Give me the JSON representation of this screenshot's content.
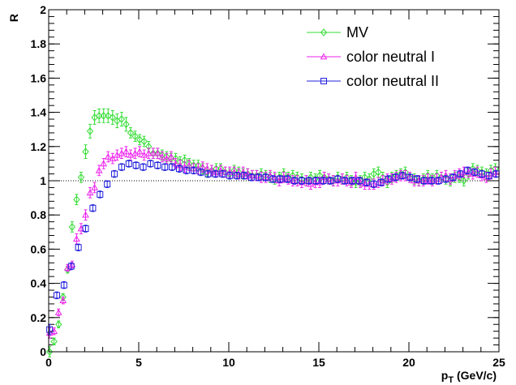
{
  "chart_data": {
    "type": "scatter",
    "title": "",
    "xlabel_main": "p",
    "xlabel_sub": "T",
    "xlabel_unit": " (GeV/c)",
    "ylabel": "R",
    "xlim": [
      0,
      25
    ],
    "ylim": [
      0,
      2
    ],
    "x_ticks": [
      0,
      5,
      10,
      15,
      20,
      25
    ],
    "y_ticks": [
      0,
      0.2,
      0.4,
      0.6,
      0.8,
      1,
      1.2,
      1.4,
      1.6,
      1.8,
      2
    ],
    "y_tick_labels": [
      "0",
      "0.2",
      "0.4",
      "0.6",
      "0.8",
      "1",
      "1.2",
      "1.4",
      "1.6",
      "1.8",
      "2"
    ],
    "reference_line_y": 1,
    "grid": false,
    "legend_position": "top-right",
    "series": [
      {
        "name": "MV",
        "marker": "diamond",
        "color": "#33dd33",
        "x": [
          0.05,
          0.3,
          0.55,
          0.8,
          1.05,
          1.3,
          1.55,
          1.8,
          2.05,
          2.3,
          2.55,
          2.8,
          3.05,
          3.3,
          3.55,
          3.8,
          4.05,
          4.3,
          4.55,
          4.8,
          5.05,
          5.3,
          5.55,
          5.8,
          6.05,
          6.3,
          6.55,
          6.8,
          7.05,
          7.3,
          7.55,
          7.8,
          8.05,
          8.3,
          8.55,
          8.8,
          9.05,
          9.3,
          9.55,
          9.8,
          10.05,
          10.3,
          10.55,
          10.8,
          11.05,
          11.3,
          11.55,
          11.8,
          12.05,
          12.3,
          12.55,
          12.8,
          13.05,
          13.3,
          13.55,
          13.8,
          14.05,
          14.3,
          14.55,
          14.8,
          15.05,
          15.3,
          15.55,
          15.8,
          16.05,
          16.3,
          16.55,
          16.8,
          17.05,
          17.3,
          17.55,
          17.8,
          18.05,
          18.3,
          18.55,
          18.8,
          19.05,
          19.3,
          19.55,
          19.8,
          20.05,
          20.3,
          20.55,
          20.8,
          21.05,
          21.3,
          21.55,
          21.8,
          22.05,
          22.3,
          22.55,
          22.8,
          23.05,
          23.3,
          23.55,
          23.8,
          24.05,
          24.3,
          24.55,
          24.8
        ],
        "y": [
          0.0,
          0.06,
          0.16,
          0.32,
          0.48,
          0.73,
          0.89,
          1.02,
          1.17,
          1.29,
          1.37,
          1.38,
          1.38,
          1.38,
          1.37,
          1.35,
          1.36,
          1.33,
          1.28,
          1.26,
          1.24,
          1.23,
          1.2,
          1.16,
          1.16,
          1.15,
          1.14,
          1.13,
          1.13,
          1.11,
          1.12,
          1.1,
          1.09,
          1.09,
          1.07,
          1.05,
          1.06,
          1.07,
          1.07,
          1.05,
          1.04,
          1.06,
          1.05,
          1.04,
          1.04,
          1.03,
          1.03,
          1.04,
          1.03,
          1.02,
          1.01,
          1.02,
          1.04,
          1.02,
          1.03,
          1.02,
          1.01,
          1.0,
          1.02,
          1.01,
          1.03,
          1.02,
          1.01,
          1.0,
          1.02,
          1.01,
          1.02,
          1.0,
          0.99,
          1.0,
          1.02,
          1.01,
          1.04,
          1.05,
          1.02,
          0.99,
          1.02,
          1.03,
          1.04,
          1.05,
          1.02,
          1.01,
          1.0,
          1.01,
          1.03,
          1.01,
          1.03,
          1.02,
          1.01,
          1.0,
          1.02,
          1.02,
          1.0,
          1.04,
          1.07,
          1.06,
          1.05,
          1.04,
          1.06,
          1.07
        ],
        "err": [
          0.03,
          0.02,
          0.02,
          0.02,
          0.02,
          0.03,
          0.03,
          0.03,
          0.04,
          0.04,
          0.04,
          0.04,
          0.04,
          0.04,
          0.04,
          0.04,
          0.04,
          0.04,
          0.03,
          0.03,
          0.03,
          0.03,
          0.03,
          0.03,
          0.03,
          0.03,
          0.03,
          0.03,
          0.03,
          0.03,
          0.03,
          0.03,
          0.03,
          0.03,
          0.03,
          0.03,
          0.03,
          0.03,
          0.03,
          0.03,
          0.03,
          0.03,
          0.03,
          0.03,
          0.03,
          0.03,
          0.03,
          0.03,
          0.03,
          0.03,
          0.03,
          0.03,
          0.03,
          0.03,
          0.03,
          0.03,
          0.03,
          0.03,
          0.03,
          0.03,
          0.03,
          0.03,
          0.03,
          0.03,
          0.03,
          0.03,
          0.03,
          0.03,
          0.03,
          0.03,
          0.03,
          0.03,
          0.03,
          0.03,
          0.03,
          0.03,
          0.03,
          0.03,
          0.03,
          0.03,
          0.03,
          0.03,
          0.03,
          0.03,
          0.03,
          0.03,
          0.03,
          0.03,
          0.03,
          0.03,
          0.03,
          0.03,
          0.03,
          0.03,
          0.03,
          0.03,
          0.03,
          0.03,
          0.03,
          0.03
        ]
      },
      {
        "name": "color neutral I",
        "marker": "triangle",
        "color": "#ee22ee",
        "x": [
          0.05,
          0.3,
          0.55,
          0.8,
          1.05,
          1.3,
          1.55,
          1.8,
          2.05,
          2.3,
          2.55,
          2.8,
          3.05,
          3.3,
          3.55,
          3.8,
          4.05,
          4.3,
          4.55,
          4.8,
          5.05,
          5.3,
          5.55,
          5.8,
          6.05,
          6.3,
          6.55,
          6.8,
          7.05,
          7.3,
          7.55,
          7.8,
          8.05,
          8.3,
          8.55,
          8.8,
          9.05,
          9.3,
          9.55,
          9.8,
          10.05,
          10.3,
          10.55,
          10.8,
          11.05,
          11.3,
          11.55,
          11.8,
          12.05,
          12.3,
          12.55,
          12.8,
          13.05,
          13.3,
          13.55,
          13.8,
          14.05,
          14.3,
          14.55,
          14.8,
          15.05,
          15.3,
          15.55,
          15.8,
          16.05,
          16.3,
          16.55,
          16.8,
          17.05,
          17.3,
          17.55,
          17.8,
          18.05,
          18.3,
          18.55,
          18.8,
          19.05,
          19.3,
          19.55,
          19.8,
          20.05,
          20.3,
          20.55,
          20.8,
          21.05,
          21.3,
          21.55,
          21.8,
          22.05,
          22.3,
          22.55,
          22.8,
          23.05,
          23.3,
          23.55,
          23.8,
          24.05,
          24.3,
          24.55,
          24.8
        ],
        "y": [
          0.11,
          0.12,
          0.23,
          0.3,
          0.49,
          0.51,
          0.66,
          0.72,
          0.8,
          0.93,
          0.96,
          1.06,
          1.1,
          1.14,
          1.13,
          1.15,
          1.16,
          1.17,
          1.15,
          1.16,
          1.17,
          1.15,
          1.16,
          1.16,
          1.16,
          1.14,
          1.13,
          1.14,
          1.1,
          1.09,
          1.08,
          1.09,
          1.07,
          1.07,
          1.08,
          1.07,
          1.06,
          1.05,
          1.06,
          1.05,
          1.05,
          1.05,
          1.04,
          1.05,
          1.04,
          1.03,
          1.03,
          1.02,
          1.02,
          1.03,
          1.02,
          1.0,
          1.02,
          1.01,
          1.0,
          1.0,
          0.99,
          1.0,
          0.98,
          0.99,
          0.99,
          1.02,
          1.01,
          1.0,
          1.0,
          1.01,
          1.0,
          0.99,
          1.02,
          0.99,
          0.98,
          0.98,
          0.98,
          0.99,
          1.0,
          1.01,
          1.01,
          1.02,
          1.03,
          1.03,
          1.02,
          1.0,
          1.0,
          1.0,
          1.01,
          1.0,
          1.01,
          1.02,
          1.03,
          1.01,
          1.03,
          1.04,
          1.05,
          1.05,
          1.04,
          1.05,
          1.03,
          1.02,
          1.04,
          1.05
        ],
        "err": [
          0.03,
          0.02,
          0.02,
          0.02,
          0.02,
          0.02,
          0.03,
          0.03,
          0.03,
          0.03,
          0.03,
          0.03,
          0.03,
          0.03,
          0.03,
          0.03,
          0.03,
          0.03,
          0.03,
          0.03,
          0.03,
          0.03,
          0.03,
          0.03,
          0.03,
          0.03,
          0.03,
          0.03,
          0.03,
          0.03,
          0.03,
          0.03,
          0.03,
          0.03,
          0.03,
          0.03,
          0.03,
          0.03,
          0.03,
          0.03,
          0.03,
          0.03,
          0.03,
          0.03,
          0.03,
          0.03,
          0.03,
          0.03,
          0.03,
          0.03,
          0.03,
          0.03,
          0.03,
          0.03,
          0.03,
          0.03,
          0.03,
          0.03,
          0.03,
          0.03,
          0.03,
          0.03,
          0.03,
          0.03,
          0.03,
          0.03,
          0.03,
          0.03,
          0.03,
          0.03,
          0.03,
          0.03,
          0.03,
          0.03,
          0.03,
          0.03,
          0.03,
          0.03,
          0.03,
          0.03,
          0.03,
          0.03,
          0.03,
          0.03,
          0.03,
          0.03,
          0.03,
          0.03,
          0.03,
          0.03,
          0.03,
          0.03,
          0.03,
          0.03,
          0.03,
          0.03,
          0.03,
          0.03,
          0.03,
          0.03
        ]
      },
      {
        "name": "color neutral II",
        "marker": "square",
        "color": "#2222dd",
        "x": [
          0.05,
          0.45,
          0.85,
          1.25,
          1.65,
          2.05,
          2.45,
          2.85,
          3.25,
          3.65,
          4.05,
          4.45,
          4.85,
          5.25,
          5.65,
          6.05,
          6.45,
          6.85,
          7.25,
          7.65,
          8.05,
          8.45,
          8.85,
          9.25,
          9.65,
          10.05,
          10.45,
          10.85,
          11.25,
          11.65,
          12.05,
          12.45,
          12.85,
          13.25,
          13.65,
          14.05,
          14.45,
          14.85,
          15.25,
          15.65,
          16.05,
          16.45,
          16.85,
          17.25,
          17.65,
          18.05,
          18.45,
          18.85,
          19.25,
          19.65,
          20.05,
          20.45,
          20.85,
          21.25,
          21.65,
          22.05,
          22.45,
          22.85,
          23.25,
          23.65,
          24.05,
          24.45,
          24.85
        ],
        "y": [
          0.13,
          0.33,
          0.39,
          0.5,
          0.61,
          0.72,
          0.84,
          0.92,
          0.98,
          1.04,
          1.08,
          1.1,
          1.09,
          1.08,
          1.1,
          1.09,
          1.08,
          1.08,
          1.07,
          1.06,
          1.06,
          1.05,
          1.04,
          1.04,
          1.04,
          1.03,
          1.03,
          1.03,
          1.02,
          1.02,
          1.02,
          1.01,
          1.01,
          1.01,
          1.0,
          1.0,
          1.0,
          1.0,
          1.0,
          1.0,
          1.01,
          1.0,
          1.0,
          1.0,
          0.99,
          0.98,
          0.99,
          1.01,
          1.02,
          1.03,
          1.02,
          1.01,
          1.0,
          1.0,
          1.0,
          1.01,
          1.02,
          1.04,
          1.06,
          1.05,
          1.04,
          1.03,
          1.04
        ],
        "err": [
          0.03,
          0.02,
          0.02,
          0.02,
          0.02,
          0.02,
          0.02,
          0.02,
          0.02,
          0.02,
          0.02,
          0.02,
          0.02,
          0.02,
          0.02,
          0.02,
          0.02,
          0.02,
          0.02,
          0.02,
          0.02,
          0.02,
          0.02,
          0.02,
          0.02,
          0.02,
          0.02,
          0.02,
          0.02,
          0.02,
          0.02,
          0.02,
          0.02,
          0.02,
          0.02,
          0.02,
          0.02,
          0.02,
          0.02,
          0.02,
          0.02,
          0.02,
          0.02,
          0.02,
          0.02,
          0.02,
          0.02,
          0.02,
          0.02,
          0.02,
          0.02,
          0.02,
          0.02,
          0.02,
          0.02,
          0.02,
          0.02,
          0.02,
          0.02,
          0.02,
          0.02,
          0.02,
          0.02
        ]
      }
    ]
  }
}
